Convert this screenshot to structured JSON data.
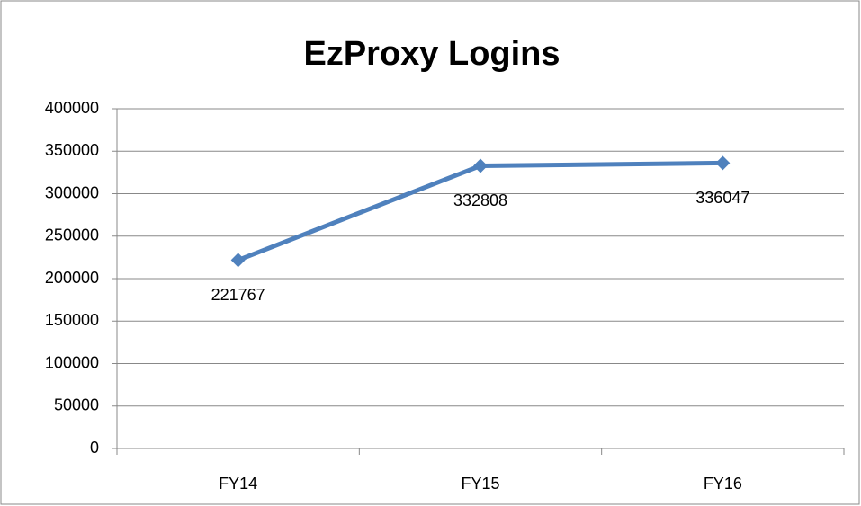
{
  "chart_data": {
    "type": "line",
    "title": "EzProxy Logins",
    "categories": [
      "FY14",
      "FY15",
      "FY16"
    ],
    "series": [
      {
        "name": "EzProxy Logins",
        "color": "#4f81bd",
        "values": [
          221767,
          332808,
          336047
        ]
      }
    ],
    "ylim": [
      0,
      400000
    ],
    "yticks": [
      0,
      50000,
      100000,
      150000,
      200000,
      250000,
      300000,
      350000,
      400000
    ],
    "grid": true,
    "legend": false
  }
}
